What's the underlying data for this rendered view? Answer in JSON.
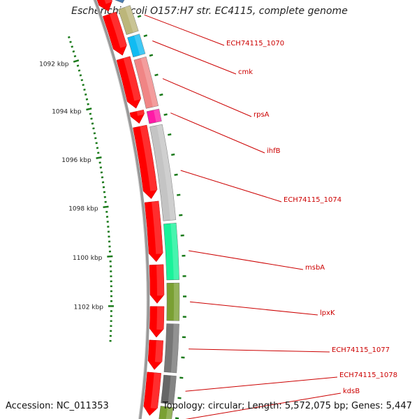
{
  "title": "Escherichia coli O157:H7 str. EC4115, complete genome",
  "footer": {
    "accession": "Accession: NC_011353",
    "topology": "Topology: circular; Length: 5,572,075 bp; Genes: 5,447"
  },
  "ticks": [
    {
      "label": "1092 kbp"
    },
    {
      "label": "1094 kbp"
    },
    {
      "label": "1096 kbp"
    },
    {
      "label": "1098 kbp"
    },
    {
      "label": "1100 kbp"
    },
    {
      "label": "1102 kbp"
    }
  ],
  "genes": [
    {
      "name": "ECH74115_1070",
      "color": "#bcb67a"
    },
    {
      "name": "cmk",
      "color": "#11bbf2"
    },
    {
      "name": "rpsA",
      "color": "#f08585"
    },
    {
      "name": "ihfB",
      "color": "#ff1aa6"
    },
    {
      "name": "ECH74115_1074",
      "color": "#c4c4c4"
    },
    {
      "name": "msbA",
      "color": "#1af29a"
    },
    {
      "name": "lpxK",
      "color": "#7aa033"
    },
    {
      "name": "ECH74115_1077",
      "color": "#777777"
    },
    {
      "name": "ECH74115_1078",
      "color": "#666666"
    },
    {
      "name": "kdsB",
      "color": "#7aa033"
    }
  ],
  "colors": {
    "cds": "#ff0000",
    "label": "#cc0000",
    "tick": "#1a7a1a",
    "backbone": "#888888"
  }
}
